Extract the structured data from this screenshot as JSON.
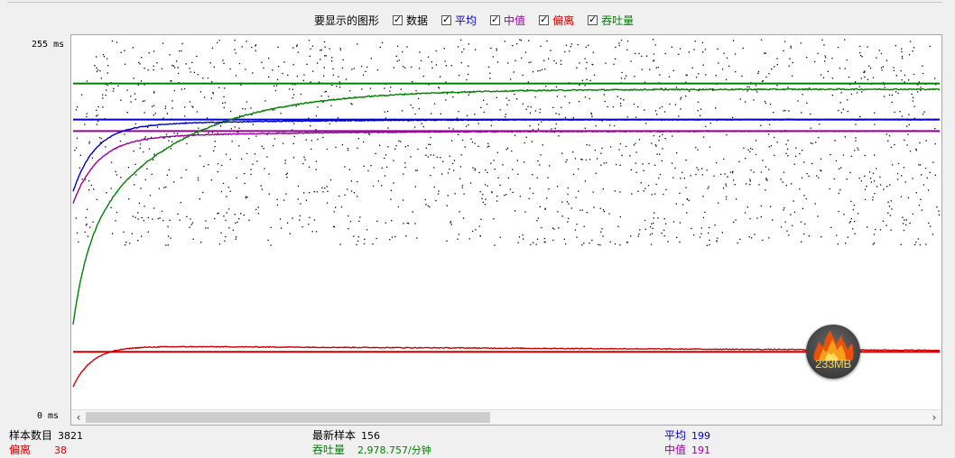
{
  "legend": {
    "prompt": "要显示的图形",
    "items": [
      {
        "id": "data",
        "label": "数据",
        "color": "#000000",
        "checked": true
      },
      {
        "id": "avg",
        "label": "平均",
        "color": "#0000cc",
        "checked": true
      },
      {
        "id": "median",
        "label": "中值",
        "color": "#990099",
        "checked": true
      },
      {
        "id": "deviation",
        "label": "偏离",
        "color": "#cc0000",
        "checked": true
      },
      {
        "id": "throughput",
        "label": "吞吐量",
        "color": "#008000",
        "checked": true
      }
    ]
  },
  "axis": {
    "top_label": "255 ms",
    "bottom_label": "0 ms"
  },
  "stats": {
    "samples_label": "样本数目",
    "samples_value": "3821",
    "deviation_label": "偏离",
    "deviation_value": "38",
    "latest_label": "最新样本",
    "latest_value": "156",
    "throughput_label": "吞吐量",
    "throughput_value": "2,978.757/分钟",
    "avg_label": "平均",
    "avg_value": "199",
    "median_label": "中值",
    "median_value": "191"
  },
  "badge": {
    "text": "233MB",
    "icon": "fire-icon"
  },
  "chart_data": {
    "type": "line",
    "ylim": [
      0,
      255
    ],
    "y_unit": "ms",
    "series": [
      {
        "name": "数据",
        "color": "#000000"
      },
      {
        "name": "平均",
        "color": "#0000cc",
        "final": 199
      },
      {
        "name": "中值",
        "color": "#990099",
        "final": 191
      },
      {
        "name": "偏离",
        "color": "#cc0000",
        "final": 38
      },
      {
        "name": "吞吐量",
        "color": "#008000"
      }
    ]
  }
}
